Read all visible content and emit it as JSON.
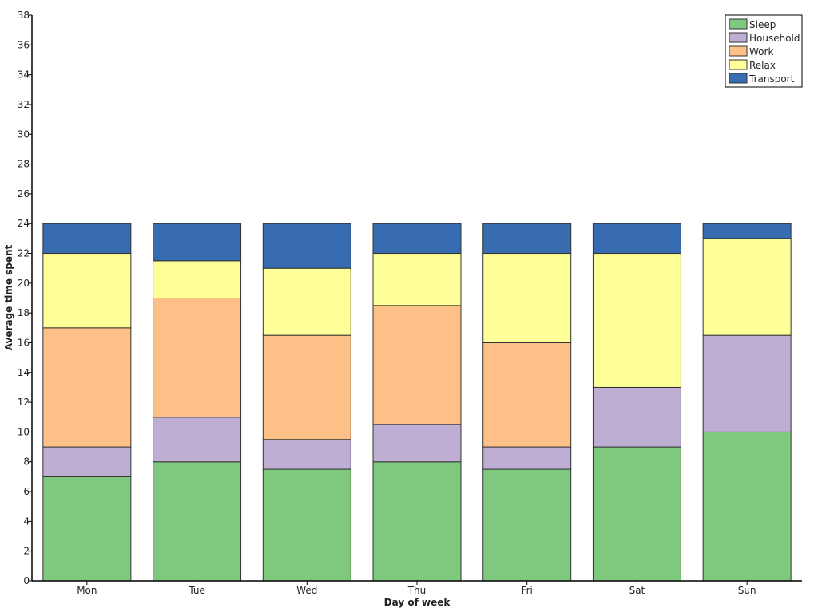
{
  "chart_data": {
    "type": "bar",
    "stacked": true,
    "title": "",
    "xlabel": "Day of week",
    "ylabel": "Average time spent",
    "ylim": [
      0,
      38
    ],
    "yticks": [
      0,
      2,
      4,
      6,
      8,
      10,
      12,
      14,
      16,
      18,
      20,
      22,
      24,
      26,
      28,
      30,
      32,
      34,
      36,
      38
    ],
    "grid": false,
    "legend_position": "top-right",
    "categories": [
      "Mon",
      "Tue",
      "Wed",
      "Thu",
      "Fri",
      "Sat",
      "Sun"
    ],
    "series": [
      {
        "name": "Sleep",
        "color": "#7fc97f",
        "values": [
          7,
          8,
          7.5,
          8,
          7.5,
          9,
          10
        ]
      },
      {
        "name": "Household",
        "color": "#beaed4",
        "values": [
          2,
          3,
          2,
          2.5,
          1.5,
          4,
          6.5
        ]
      },
      {
        "name": "Work",
        "color": "#fdc086",
        "values": [
          8,
          8,
          7,
          8,
          7,
          0,
          0
        ]
      },
      {
        "name": "Relax",
        "color": "#ffff99",
        "values": [
          5,
          2.5,
          4.5,
          3.5,
          6,
          9,
          6.5
        ]
      },
      {
        "name": "Transport",
        "color": "#386cb0",
        "values": [
          2,
          2.5,
          3,
          2,
          2,
          2,
          1
        ]
      }
    ]
  }
}
